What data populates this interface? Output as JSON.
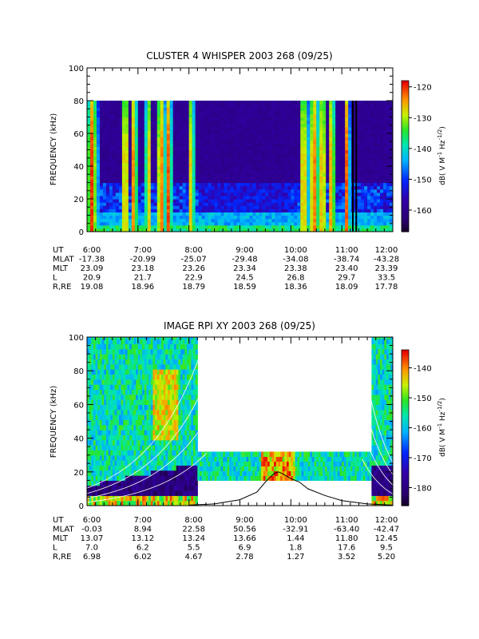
{
  "chart_data": [
    {
      "type": "heatmap",
      "title": "CLUSTER 4 WHISPER 2003 268 (09/25)",
      "ylabel": "FREQUENCY (kHz)",
      "ylim": [
        0,
        100
      ],
      "y_ticks": [
        "0",
        "20",
        "40",
        "60",
        "80",
        "100"
      ],
      "xlim": [
        "6:00",
        "12:00"
      ],
      "x_ticks": [
        "6:00",
        "7:00",
        "8:00",
        "9:00",
        "10:00",
        "11:00",
        "12:00"
      ],
      "data_frequency_range_khz": [
        0,
        80
      ],
      "colorbar": {
        "label": "dB( V M^-1 Hz^-1/2)",
        "range": [
          -167,
          -118
        ],
        "ticks": [
          "-120",
          "-130",
          "-140",
          "-150",
          "-160"
        ],
        "tick_values": [
          -120,
          -130,
          -140,
          -150,
          -160
        ]
      },
      "markers": [
        {
          "type": "vertical-line",
          "x": "11:13"
        },
        {
          "type": "vertical-line",
          "x": "11:17"
        }
      ],
      "ephemeris": {
        "rows": [
          {
            "label": "UT",
            "values": [
              "6:00",
              "7:00",
              "8:00",
              "9:00",
              "10:00",
              "11:00",
              "12:00"
            ]
          },
          {
            "label": "MLAT",
            "values": [
              "-17.38",
              "-20.99",
              "-25.07",
              "-29.48",
              "-34.08",
              "-38.74",
              "-43.28"
            ]
          },
          {
            "label": "MLT",
            "values": [
              "23.09",
              "23.18",
              "23.26",
              "23.34",
              "23.38",
              "23.40",
              "23.39"
            ]
          },
          {
            "label": "L",
            "values": [
              "20.9",
              "21.7",
              "22.9",
              "24.5",
              "26.8",
              "29.7",
              "33.5"
            ]
          },
          {
            "label": "R,RE",
            "values": [
              "19.08",
              "18.96",
              "18.79",
              "18.59",
              "18.36",
              "18.09",
              "17.78"
            ]
          }
        ]
      }
    },
    {
      "type": "heatmap",
      "title": "IMAGE RPI XY 2003 268 (09/25)",
      "ylabel": "FREQUENCY (kHz)",
      "ylim": [
        0,
        100
      ],
      "y_ticks": [
        "0",
        "20",
        "40",
        "60",
        "80",
        "100"
      ],
      "xlim": [
        "6:00",
        "12:00"
      ],
      "x_ticks": [
        "6:00",
        "7:00",
        "8:00",
        "9:00",
        "10:00",
        "11:00",
        "12:00"
      ],
      "data_segments": [
        {
          "x_range": [
            "6:00",
            "8:10"
          ],
          "freq_range_khz": [
            0,
            102
          ]
        },
        {
          "x_range": [
            "8:10",
            "11:35"
          ],
          "freq_range_khz": [
            15,
            32
          ]
        },
        {
          "x_range": [
            "11:35",
            "12:00"
          ],
          "freq_range_khz": [
            0,
            102
          ]
        }
      ],
      "colorbar": {
        "label": "dB( V M^-1 Hz^-1/2)",
        "range": [
          -186,
          -134
        ],
        "ticks": [
          "-140",
          "-150",
          "-160",
          "-170",
          "-180"
        ],
        "tick_values": [
          -140,
          -150,
          -160,
          -170,
          -180
        ]
      },
      "overlay_curve": {
        "name": "",
        "x": [
          "8:00",
          "8:30",
          "9:00",
          "9:20",
          "9:30",
          "9:40",
          "9:45",
          "9:50",
          "10:00",
          "10:10",
          "10:20",
          "10:40",
          "11:00",
          "11:30",
          "12:00"
        ],
        "y": [
          0.3,
          1,
          3.5,
          8,
          14,
          19,
          20,
          19,
          16,
          14,
          10,
          6,
          3,
          1,
          0.3
        ]
      },
      "ephemeris": {
        "rows": [
          {
            "label": "UT",
            "values": [
              "6:00",
              "7:00",
              "8:00",
              "9:00",
              "10:00",
              "11:00",
              "12:00"
            ]
          },
          {
            "label": "MLAT",
            "values": [
              "-0.03",
              "8.94",
              "22.58",
              "50.56",
              "-32.91",
              "-63.40",
              "-42.47"
            ]
          },
          {
            "label": "MLT",
            "values": [
              "13.07",
              "13.12",
              "13.24",
              "13.66",
              "1.44",
              "11.80",
              "12.45"
            ]
          },
          {
            "label": "L",
            "values": [
              "7.0",
              "6.2",
              "5.5",
              "6.9",
              "1.8",
              "17.6",
              "9.5"
            ]
          },
          {
            "label": "R,RE",
            "values": [
              "6.98",
              "6.02",
              "4.67",
              "2.78",
              "1.27",
              "3.52",
              "5.20"
            ]
          }
        ]
      }
    }
  ]
}
